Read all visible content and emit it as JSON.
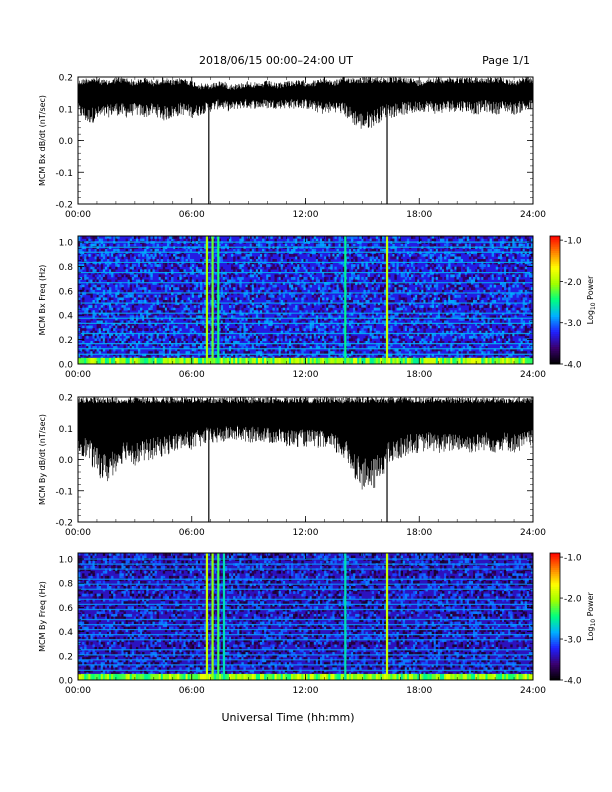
{
  "header": {
    "title": "2018/06/15  00:00–24:00 UT",
    "page": "Page 1/1"
  },
  "footer": {
    "xlabel": "Universal Time (hh:mm)"
  },
  "colorbar": {
    "label_main": "Log",
    "label_sub": "10",
    "label_tail": " Power",
    "ticks": [
      "-1.0",
      "-2.0",
      "-3.0",
      "-4.0"
    ],
    "tick_values": [
      -1.0,
      -2.0,
      -3.0,
      -4.0
    ],
    "range": [
      -4.0,
      -0.9
    ],
    "colormap": [
      "#000000",
      "#3a0070",
      "#2020ff",
      "#00b0ff",
      "#00ff80",
      "#a0ff00",
      "#ffff00",
      "#ff8000",
      "#ff0000"
    ]
  },
  "chart_data": [
    {
      "type": "line",
      "id": "bx_dbdt",
      "ylabel": "MCM Bx dB/dt (nT/sec)",
      "xlabels": [
        "00:00",
        "06:00",
        "12:00",
        "18:00",
        "24:00"
      ],
      "xtick_values": [
        0,
        6,
        12,
        18,
        24
      ],
      "xlim": [
        0,
        24
      ],
      "ylim": [
        -0.2,
        0.2
      ],
      "yticks": [
        "0.2",
        "0.1",
        "0.0",
        "-0.1",
        "-0.2"
      ],
      "ytick_values": [
        0.2,
        0.1,
        0.0,
        -0.1,
        -0.2
      ],
      "series": [
        {
          "x": [
            0,
            0.5,
            1,
            1.5,
            2,
            2.5,
            3,
            3.5,
            4,
            4.5,
            5,
            5.5,
            6,
            6.5,
            6.8,
            7,
            7.5,
            8,
            8.5,
            9,
            9.5,
            10,
            10.5,
            11,
            11.5,
            12,
            12.5,
            13,
            13.5,
            14,
            14.5,
            15,
            15.5,
            16,
            16.4,
            16.5,
            17,
            17.5,
            18,
            18.5,
            19,
            19.5,
            20,
            20.5,
            21,
            21.5,
            22,
            22.5,
            23,
            23.5,
            24
          ],
          "upper": [
            0.19,
            0.2,
            0.2,
            0.19,
            0.2,
            0.2,
            0.19,
            0.2,
            0.19,
            0.2,
            0.19,
            0.2,
            0.19,
            0.18,
            0.18,
            0.18,
            0.19,
            0.18,
            0.18,
            0.19,
            0.18,
            0.19,
            0.18,
            0.19,
            0.19,
            0.19,
            0.19,
            0.2,
            0.19,
            0.2,
            0.2,
            0.2,
            0.2,
            0.2,
            0.2,
            0.2,
            0.2,
            0.2,
            0.19,
            0.2,
            0.2,
            0.2,
            0.2,
            0.2,
            0.2,
            0.2,
            0.2,
            0.2,
            0.19,
            0.2,
            0.2
          ],
          "lower": [
            0.08,
            0.05,
            0.06,
            0.07,
            0.08,
            0.07,
            0.08,
            0.07,
            0.08,
            0.06,
            0.07,
            0.08,
            0.07,
            0.08,
            0.09,
            0.09,
            0.1,
            0.09,
            0.1,
            0.1,
            0.1,
            0.1,
            0.1,
            0.1,
            0.1,
            0.1,
            0.09,
            0.08,
            0.09,
            0.08,
            0.05,
            0.03,
            0.04,
            0.06,
            0.08,
            0.07,
            0.08,
            0.08,
            0.09,
            0.09,
            0.08,
            0.09,
            0.09,
            0.09,
            0.08,
            0.09,
            0.08,
            0.09,
            0.08,
            0.09,
            0.09
          ]
        }
      ],
      "spikes": [
        {
          "x": 6.9,
          "y": -0.2
        },
        {
          "x": 16.3,
          "y": -0.2
        }
      ]
    },
    {
      "type": "heatmap",
      "id": "bx_spectrogram",
      "ylabel": "MCM Bx Freq (Hz)",
      "xlabels": [
        "00:00",
        "06:00",
        "12:00",
        "18:00",
        "24:00"
      ],
      "xtick_values": [
        0,
        6,
        12,
        18,
        24
      ],
      "xlim": [
        0,
        24
      ],
      "ylim": [
        0,
        1.05
      ],
      "yticks": [
        "1.0",
        "0.8",
        "0.6",
        "0.4",
        "0.2",
        "0.0"
      ],
      "ytick_values": [
        1.0,
        0.8,
        0.6,
        0.4,
        0.2,
        0.0
      ],
      "background_log_power": -3.3,
      "harmonic_lines_hz": [
        0.04,
        0.08,
        0.125,
        0.167,
        0.25,
        0.333,
        0.375,
        0.417,
        0.5,
        0.583,
        0.667,
        0.75,
        0.833,
        0.917,
        0.958,
        1.0
      ],
      "harmonic_log_power": -2.8,
      "low_freq_band": {
        "max_hz": 0.05,
        "log_power": -2.3
      },
      "vertical_events": [
        {
          "t": 6.8,
          "log_power": -2.0
        },
        {
          "t": 7.1,
          "log_power": -2.2
        },
        {
          "t": 7.4,
          "log_power": -2.4
        },
        {
          "t": 14.1,
          "log_power": -2.5
        },
        {
          "t": 16.3,
          "log_power": -1.9
        }
      ]
    },
    {
      "type": "line",
      "id": "by_dbdt",
      "ylabel": "MCM By dB/dt (nT/sec)",
      "xlabels": [
        "00:00",
        "06:00",
        "12:00",
        "18:00",
        "24:00"
      ],
      "xtick_values": [
        0,
        6,
        12,
        18,
        24
      ],
      "xlim": [
        0,
        24
      ],
      "ylim": [
        -0.2,
        0.2
      ],
      "yticks": [
        "0.2",
        "0.1",
        "0.0",
        "-0.1",
        "-0.2"
      ],
      "ytick_values": [
        0.2,
        0.1,
        0.0,
        -0.1,
        -0.2
      ],
      "series": [
        {
          "x": [
            0,
            0.5,
            1,
            1.5,
            2,
            2.5,
            3,
            3.5,
            4,
            4.5,
            5,
            5.5,
            6,
            6.5,
            6.8,
            7,
            7.5,
            8,
            8.5,
            9,
            9.5,
            10,
            10.5,
            11,
            11.5,
            12,
            12.5,
            13,
            13.5,
            14,
            14.5,
            15,
            15.5,
            16,
            16.4,
            16.5,
            17,
            17.5,
            18,
            18.5,
            19,
            19.5,
            20,
            20.5,
            21,
            21.5,
            22,
            22.5,
            23,
            23.5,
            24
          ],
          "upper": [
            0.2,
            0.2,
            0.2,
            0.2,
            0.2,
            0.2,
            0.2,
            0.2,
            0.2,
            0.2,
            0.2,
            0.2,
            0.2,
            0.2,
            0.2,
            0.2,
            0.2,
            0.2,
            0.2,
            0.2,
            0.2,
            0.2,
            0.2,
            0.2,
            0.2,
            0.2,
            0.2,
            0.2,
            0.2,
            0.2,
            0.2,
            0.2,
            0.2,
            0.2,
            0.2,
            0.2,
            0.2,
            0.2,
            0.2,
            0.2,
            0.2,
            0.2,
            0.2,
            0.2,
            0.2,
            0.2,
            0.2,
            0.2,
            0.2,
            0.2,
            0.2
          ],
          "lower": [
            0.02,
            0.0,
            -0.05,
            -0.08,
            -0.04,
            0.0,
            -0.02,
            -0.01,
            0.0,
            0.01,
            0.02,
            0.03,
            0.03,
            0.04,
            0.05,
            0.05,
            0.05,
            0.06,
            0.06,
            0.05,
            0.06,
            0.05,
            0.05,
            0.04,
            0.04,
            0.04,
            0.04,
            0.03,
            0.02,
            0.0,
            -0.05,
            -0.1,
            -0.11,
            -0.06,
            -0.02,
            -0.02,
            0.0,
            0.02,
            0.02,
            0.03,
            0.02,
            0.02,
            0.03,
            0.02,
            0.02,
            0.03,
            0.02,
            0.03,
            0.02,
            0.03,
            0.04
          ]
        }
      ],
      "spikes": [
        {
          "x": 6.9,
          "y": -0.2
        },
        {
          "x": 16.3,
          "y": -0.2
        }
      ]
    },
    {
      "type": "heatmap",
      "id": "by_spectrogram",
      "ylabel": "MCM By Freq (Hz)",
      "xlabels": [
        "00:00",
        "06:00",
        "12:00",
        "18:00",
        "24:00"
      ],
      "xtick_values": [
        0,
        6,
        12,
        18,
        24
      ],
      "xlim": [
        0,
        24
      ],
      "ylim": [
        0,
        1.05
      ],
      "yticks": [
        "1.0",
        "0.8",
        "0.6",
        "0.4",
        "0.2",
        "0.0"
      ],
      "ytick_values": [
        1.0,
        0.8,
        0.6,
        0.4,
        0.2,
        0.0
      ],
      "background_log_power": -3.4,
      "harmonic_lines_hz": [
        0.04,
        0.08,
        0.125,
        0.167,
        0.208,
        0.25,
        0.333,
        0.375,
        0.417,
        0.458,
        0.5,
        0.583,
        0.625,
        0.667,
        0.75,
        0.792,
        0.833,
        0.917,
        0.958,
        1.0
      ],
      "harmonic_log_power": -2.9,
      "low_freq_band": {
        "max_hz": 0.05,
        "log_power": -2.3
      },
      "vertical_events": [
        {
          "t": 6.8,
          "log_power": -1.9
        },
        {
          "t": 7.1,
          "log_power": -2.1
        },
        {
          "t": 7.4,
          "log_power": -2.3
        },
        {
          "t": 7.7,
          "log_power": -2.6
        },
        {
          "t": 14.1,
          "log_power": -2.6
        },
        {
          "t": 16.3,
          "log_power": -1.9
        }
      ]
    }
  ]
}
